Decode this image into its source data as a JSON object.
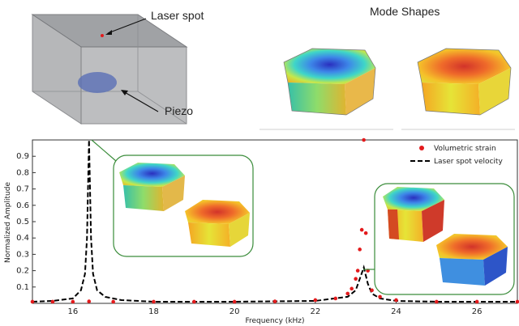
{
  "top": {
    "laser_label": "Laser spot",
    "piezo_label": "Piezo",
    "mode_shapes_title": "Mode Shapes"
  },
  "chart_data": {
    "type": "line",
    "title": "",
    "xlabel": "Frequency (kHz)",
    "ylabel": "Normalized Amplitude",
    "xlim": [
      15,
      27
    ],
    "ylim": [
      0,
      1.0
    ],
    "x_ticks": [
      "16",
      "18",
      "20",
      "22",
      "24",
      "26"
    ],
    "y_ticks": [
      "0.1",
      "0.2",
      "0.3",
      "0.4",
      "0.5",
      "0.6",
      "0.7",
      "0.8",
      "0.9"
    ],
    "legend": {
      "placement": "top-right",
      "entries": [
        "Volumetric strain",
        "Laser spot velocity"
      ]
    },
    "series": [
      {
        "name": "Volumetric strain",
        "style": "red-dots",
        "color": "#e31a1c",
        "x": [
          15.0,
          15.5,
          16.0,
          16.4,
          17.0,
          18.0,
          19.0,
          20.0,
          21.0,
          22.0,
          22.5,
          22.8,
          22.9,
          23.0,
          23.05,
          23.1,
          23.15,
          23.2,
          23.25,
          23.3,
          23.4,
          23.6,
          24.0,
          25.0,
          26.0,
          27.0
        ],
        "y": [
          0.01,
          0.01,
          0.01,
          0.012,
          0.01,
          0.01,
          0.01,
          0.01,
          0.012,
          0.02,
          0.03,
          0.06,
          0.09,
          0.15,
          0.2,
          0.33,
          0.45,
          1.0,
          0.43,
          0.2,
          0.08,
          0.04,
          0.02,
          0.01,
          0.01,
          0.01
        ]
      },
      {
        "name": "Laser spot velocity",
        "style": "black-dashed",
        "color": "#000000",
        "x": [
          15.0,
          15.5,
          16.0,
          16.2,
          16.3,
          16.35,
          16.4,
          16.45,
          16.5,
          16.6,
          16.8,
          17.2,
          18.0,
          20.0,
          22.0,
          22.8,
          23.0,
          23.1,
          23.2,
          23.3,
          23.4,
          23.6,
          24.0,
          25.0,
          27.0
        ],
        "y": [
          0.01,
          0.015,
          0.03,
          0.08,
          0.18,
          0.4,
          1.0,
          0.4,
          0.18,
          0.08,
          0.04,
          0.02,
          0.01,
          0.01,
          0.015,
          0.04,
          0.08,
          0.15,
          0.22,
          0.12,
          0.06,
          0.03,
          0.015,
          0.01,
          0.01
        ]
      }
    ],
    "annotations": [
      {
        "x": 16.4,
        "y": 0.99,
        "label": "inset-left"
      },
      {
        "x": 23.2,
        "y": 0.33,
        "label": "inset-right"
      }
    ]
  },
  "colors": {
    "cube_gray": "#a8aaad",
    "piezo_blue": "#5a6fb5",
    "inset_border": "#3a8c3a"
  }
}
